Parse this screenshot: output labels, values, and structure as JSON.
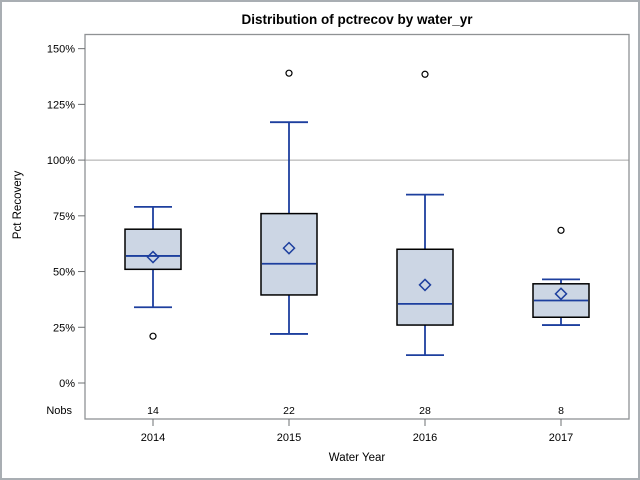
{
  "chart_data": {
    "type": "box",
    "title": "Distribution of pctrecov by water_yr",
    "xlabel": "Water Year",
    "ylabel": "Pct Recovery",
    "nobs_label": "Nobs",
    "categories": [
      "2014",
      "2015",
      "2016",
      "2017"
    ],
    "nobs": [
      "14",
      "22",
      "28",
      "8"
    ],
    "y_ticks": [
      {
        "value": 0,
        "label": "0%"
      },
      {
        "value": 25,
        "label": "25%"
      },
      {
        "value": 50,
        "label": "50%"
      },
      {
        "value": 75,
        "label": "75%"
      },
      {
        "value": 100,
        "label": "100%"
      },
      {
        "value": 125,
        "label": "125%"
      },
      {
        "value": 150,
        "label": "150%"
      }
    ],
    "ylim": [
      -7,
      157
    ],
    "reference_line": 100,
    "grid": "off",
    "legend_position": "none",
    "series": [
      {
        "category": "2014",
        "low": 34,
        "q1": 51,
        "median": 57,
        "q3": 69,
        "high": 79,
        "mean": 56.5,
        "outliers": [
          21
        ]
      },
      {
        "category": "2015",
        "low": 22,
        "q1": 39.5,
        "median": 53.5,
        "q3": 76,
        "high": 117,
        "mean": 60.5,
        "outliers": [
          139
        ]
      },
      {
        "category": "2016",
        "low": 12.5,
        "q1": 26,
        "median": 35.5,
        "q3": 60,
        "high": 84.5,
        "mean": 44,
        "outliers": [
          138.5
        ]
      },
      {
        "category": "2017",
        "low": 26,
        "q1": 29.5,
        "median": 37,
        "q3": 44.5,
        "high": 46.5,
        "mean": 40,
        "outliers": [
          68.5
        ]
      }
    ],
    "colors": {
      "box_fill": "#ccd6e4",
      "box_border": "#000000",
      "line": "#1d3f9e",
      "outlier_stroke": "#000000",
      "reference": "#a6a6a6",
      "frame": "#8f9294",
      "tick": "#6e7173",
      "text": "#000000",
      "figure_border": "#a9aeb3",
      "background": "#ffffff"
    }
  }
}
